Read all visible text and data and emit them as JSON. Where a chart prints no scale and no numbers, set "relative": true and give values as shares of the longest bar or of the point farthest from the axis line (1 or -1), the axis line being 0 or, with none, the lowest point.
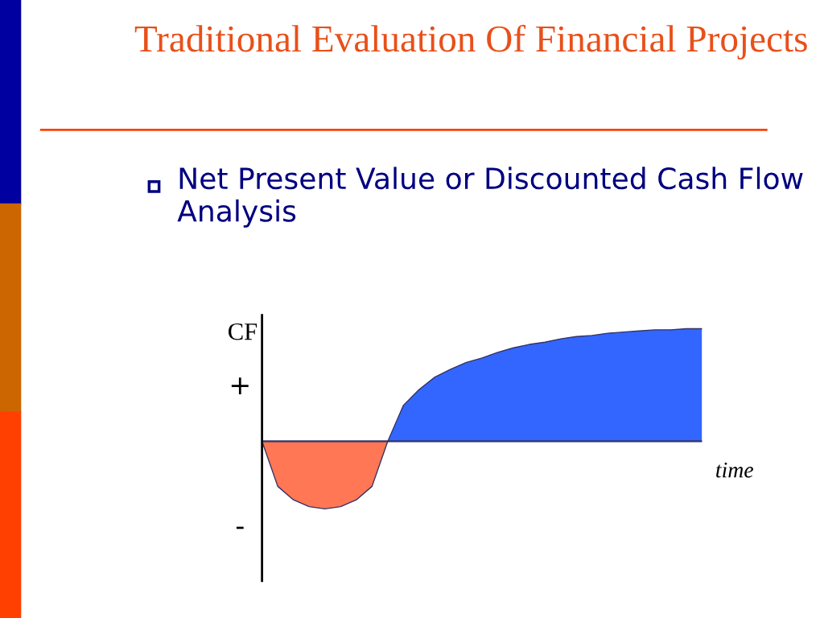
{
  "chart_data": {
    "type": "area",
    "title": "Traditional Evaluation Of Financial Projects",
    "subtitle": "Net Present Value or Discounted Cash Flow Analysis",
    "xlabel": "time",
    "ylabel": "CF",
    "relative": true,
    "annotations": [
      "+",
      "-"
    ],
    "ref_lines": [
      {
        "axis": "y",
        "value": 0,
        "color": "#333366"
      }
    ],
    "categories": [
      null,
      null,
      null,
      null,
      null,
      null,
      null,
      null,
      null,
      null,
      null,
      null,
      null,
      null,
      null,
      null,
      null,
      null,
      null,
      null,
      null,
      null,
      null,
      null,
      null,
      null,
      null,
      null,
      null
    ],
    "series": [
      {
        "color": "#ff7755",
        "values": [
          0,
          -0.4,
          -0.52,
          -0.58,
          -0.6,
          -0.58,
          -0.52,
          -0.4,
          0,
          null,
          null,
          null,
          null,
          null,
          null,
          null,
          null,
          null,
          null,
          null,
          null,
          null,
          null,
          null,
          null,
          null,
          null,
          null,
          null
        ]
      },
      {
        "color": "#3366ff",
        "values": [
          null,
          null,
          null,
          null,
          null,
          null,
          null,
          null,
          0,
          0.32,
          0.46,
          0.57,
          0.64,
          0.7,
          0.74,
          0.79,
          0.83,
          0.86,
          0.88,
          0.91,
          0.93,
          0.94,
          0.96,
          0.97,
          0.98,
          0.99,
          0.99,
          1,
          1
        ]
      }
    ]
  }
}
